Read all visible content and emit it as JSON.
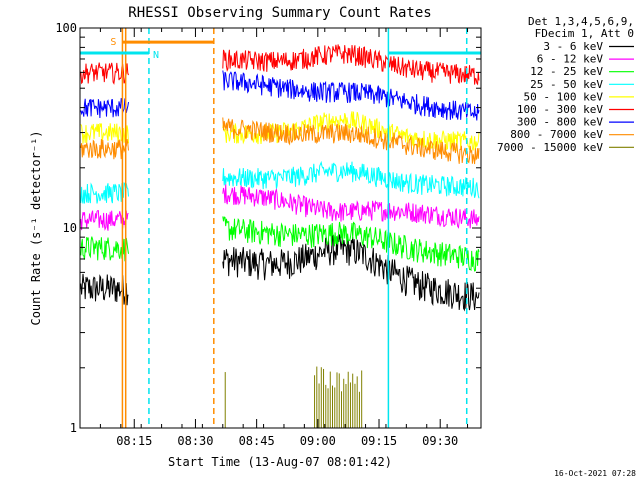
{
  "chart_data": {
    "type": "line",
    "title": "RHESSI Observing Summary Count Rates",
    "xlabel": "Start Time (13-Aug-07 08:01:42)",
    "ylabel": "Count Rate (s⁻¹ detector⁻¹)",
    "yscale": "log",
    "ylim": [
      1,
      100
    ],
    "xlim_minutes": [
      0,
      98.3
    ],
    "x_ticks": [
      {
        "label": "08:15",
        "t": 13.3
      },
      {
        "label": "08:30",
        "t": 28.3
      },
      {
        "label": "08:45",
        "t": 43.3
      },
      {
        "label": "09:00",
        "t": 58.3
      },
      {
        "label": "09:15",
        "t": 73.3
      },
      {
        "label": "09:30",
        "t": 88.3
      }
    ],
    "y_ticks": [
      {
        "label": "100",
        "v": 100
      },
      {
        "label": "10",
        "v": 10
      },
      {
        "label": "1",
        "v": 1
      }
    ],
    "legend_header": [
      "Det 1,3,4,5,6,9,",
      "FDecim 1, Att 0"
    ],
    "legend_position": "right",
    "timestamp": "16-Oct-2021 07:28",
    "flag_labels": {
      "saa": "S",
      "night": "N"
    },
    "night_intervals": [
      [
        0,
        16.9
      ],
      [
        75.6,
        98.3
      ]
    ],
    "night_level": 75,
    "saa_interval": [
      10.4,
      32.8
    ],
    "saa_level": 85,
    "vlines": [
      {
        "t": 10.4,
        "color": "#ff8c00",
        "style": "solid"
      },
      {
        "t": 11.2,
        "color": "#ff8c00",
        "style": "solid"
      },
      {
        "t": 16.9,
        "color": "#00e5ee",
        "style": "dashed"
      },
      {
        "t": 32.8,
        "color": "#ff8c00",
        "style": "dashed"
      },
      {
        "t": 75.6,
        "color": "#00e5ee",
        "style": "solid"
      },
      {
        "t": 94.8,
        "color": "#00e5ee",
        "style": "dashed"
      }
    ],
    "data_gap": [
      12.0,
      35.0
    ],
    "series": [
      {
        "name": "3 - 6 keV",
        "color": "#000000",
        "values": {
          "pre": 5.0,
          "start": 7.0,
          "mid": 8.0,
          "end": 4.5,
          "peak_t": 64
        }
      },
      {
        "name": "6 - 12 keV",
        "color": "#ff00ff",
        "values": {
          "pre": 11.0,
          "start": 15.0,
          "mid": 12.0,
          "end": 11.0,
          "peak_t": 64
        }
      },
      {
        "name": "12 - 25 keV",
        "color": "#00ff00",
        "values": {
          "pre": 8.0,
          "start": 10.0,
          "mid": 9.5,
          "end": 7.0,
          "peak_t": 64
        }
      },
      {
        "name": "25 - 50 keV",
        "color": "#00ffff",
        "values": {
          "pre": 15.0,
          "start": 18.0,
          "mid": 19.5,
          "end": 16.0,
          "peak_t": 64
        }
      },
      {
        "name": "50 - 100 keV",
        "color": "#ffff00",
        "values": {
          "pre": 30.0,
          "start": 30.0,
          "mid": 35.0,
          "end": 27.0,
          "peak_t": 64
        }
      },
      {
        "name": "100 - 300 keV",
        "color": "#ff0000",
        "values": {
          "pre": 60.0,
          "start": 70.0,
          "mid": 75.0,
          "end": 58.0,
          "peak_t": 64
        }
      },
      {
        "name": "300 - 800 keV",
        "color": "#0000ff",
        "values": {
          "pre": 40.0,
          "start": 55.0,
          "mid": 48.0,
          "end": 37.0,
          "peak_t": 64
        }
      },
      {
        "name": "800 - 7000 keV",
        "color": "#ff8c00",
        "values": {
          "pre": 25.0,
          "start": 32.0,
          "mid": 30.0,
          "end": 23.0,
          "peak_t": 64
        }
      },
      {
        "name": "7000 - 15000 keV",
        "color": "#808000",
        "values": {
          "pre": 0,
          "start": 0,
          "mid": 0,
          "end": 0,
          "peak_t": 64
        }
      }
    ]
  }
}
